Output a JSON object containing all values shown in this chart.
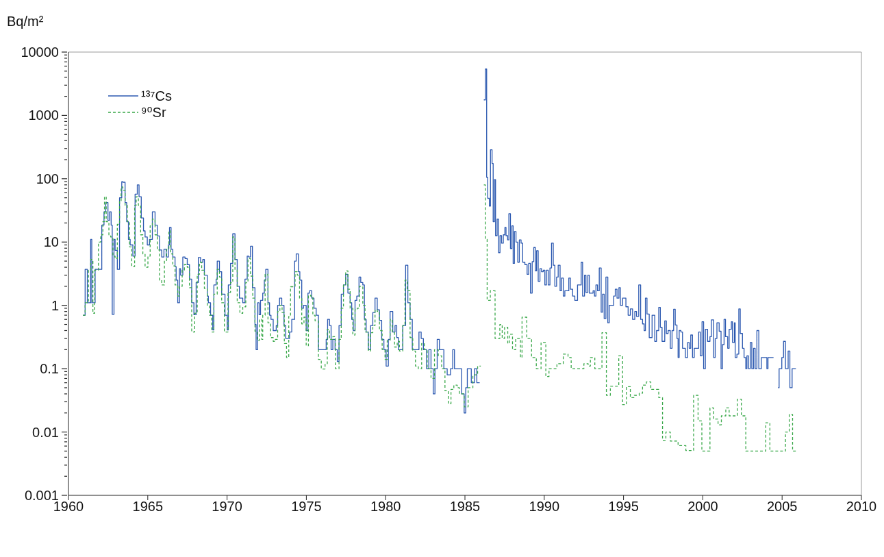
{
  "chart_data": {
    "type": "step",
    "ylabel": "Bq/m²",
    "log": "y",
    "legend": "top left",
    "marker": "none",
    "xlim": [
      1960,
      2010
    ],
    "xticks": [
      1960,
      1965,
      1970,
      1975,
      1980,
      1985,
      1990,
      1995,
      2000,
      2005,
      2010
    ],
    "ylim": [
      0.001,
      10000
    ],
    "yticks": [
      0.001,
      {
        "value": 0.002,
        "label": null
      },
      {
        "value": 0.003,
        "label": null
      },
      {
        "value": 0.004,
        "label": null
      },
      {
        "value": 0.005,
        "label": null
      },
      {
        "value": 0.006,
        "label": null
      },
      {
        "value": 0.007,
        "label": null
      },
      {
        "value": 0.008,
        "label": null
      },
      {
        "value": 0.009,
        "label": null
      },
      0.01,
      {
        "value": 0.02,
        "label": null
      },
      {
        "value": 0.03,
        "label": null
      },
      {
        "value": 0.04,
        "label": null
      },
      {
        "value": 0.05,
        "label": null
      },
      {
        "value": 0.06,
        "label": null
      },
      {
        "value": 0.07,
        "label": null
      },
      {
        "value": 0.08,
        "label": null
      },
      {
        "value": 0.09,
        "label": null
      },
      0.1,
      {
        "value": 0.2,
        "label": null
      },
      {
        "value": 0.3,
        "label": null
      },
      {
        "value": 0.4,
        "label": null
      },
      {
        "value": 0.5,
        "label": null
      },
      {
        "value": 0.6,
        "label": null
      },
      {
        "value": 0.7,
        "label": null
      },
      {
        "value": 0.8,
        "label": null
      },
      {
        "value": 0.9,
        "label": null
      },
      1,
      {
        "value": 2,
        "label": null
      },
      {
        "value": 3,
        "label": null
      },
      {
        "value": 4,
        "label": null
      },
      {
        "value": 5,
        "label": null
      },
      {
        "value": 6,
        "label": null
      },
      {
        "value": 7,
        "label": null
      },
      {
        "value": 8,
        "label": null
      },
      {
        "value": 9,
        "label": null
      },
      10,
      {
        "value": 20,
        "label": null
      },
      {
        "value": 30,
        "label": null
      },
      {
        "value": 40,
        "label": null
      },
      {
        "value": 50,
        "label": null
      },
      {
        "value": 60,
        "label": null
      },
      {
        "value": 70,
        "label": null
      },
      {
        "value": 80,
        "label": null
      },
      {
        "value": 90,
        "label": null
      },
      100,
      {
        "value": 200,
        "label": null
      },
      {
        "value": 300,
        "label": null
      },
      {
        "value": 400,
        "label": null
      },
      {
        "value": 500,
        "label": null
      },
      {
        "value": 600,
        "label": null
      },
      {
        "value": 700,
        "label": null
      },
      {
        "value": 800,
        "label": null
      },
      {
        "value": 900,
        "label": null
      },
      1000,
      {
        "value": 2000,
        "label": null
      },
      {
        "value": 3000,
        "label": null
      },
      {
        "value": 4000,
        "label": null
      },
      {
        "value": 5000,
        "label": null
      },
      {
        "value": 6000,
        "label": null
      },
      {
        "value": 7000,
        "label": null
      },
      {
        "value": 8000,
        "label": null
      },
      {
        "value": 9000,
        "label": null
      },
      10000
    ],
    "series": [
      {
        "name": "¹³⁷Cs",
        "color": "#2b58b0",
        "line_style": "solid",
        "x": [
          1960.91,
          1961.05,
          1961.19,
          1961.4,
          1961.47,
          1961.68,
          1962.1,
          1962.24,
          1962.35,
          1962.49,
          1962.59,
          1962.69,
          1962.76,
          1962.87,
          1962.94,
          1963.08,
          1963.22,
          1963.36,
          1963.43,
          1963.57,
          1963.67,
          1963.78,
          1963.89,
          1964.06,
          1964.2,
          1964.34,
          1964.45,
          1964.59,
          1964.73,
          1964.83,
          1964.97,
          1965.11,
          1965.29,
          1965.46,
          1965.6,
          1965.74,
          1965.88,
          1966.02,
          1966.16,
          1966.3,
          1966.37,
          1966.47,
          1966.58,
          1966.72,
          1966.79,
          1966.89,
          1967.0,
          1967.07,
          1967.21,
          1967.35,
          1967.49,
          1967.63,
          1967.77,
          1967.91,
          1968.05,
          1968.19,
          1968.33,
          1968.47,
          1968.57,
          1968.75,
          1968.82,
          1968.96,
          1969.1,
          1969.17,
          1969.31,
          1969.38,
          1969.52,
          1969.66,
          1969.87,
          1970.01,
          1970.08,
          1970.22,
          1970.36,
          1970.5,
          1970.64,
          1970.78,
          1970.99,
          1971.13,
          1971.27,
          1971.37,
          1971.48,
          1971.6,
          1971.76,
          1971.83,
          1971.93,
          1972.02,
          1972.11,
          1972.25,
          1972.35,
          1972.44,
          1972.58,
          1972.68,
          1972.77,
          1972.91,
          1973.1,
          1973.19,
          1973.31,
          1973.45,
          1973.59,
          1973.7,
          1973.94,
          1974.08,
          1974.26,
          1974.36,
          1974.5,
          1974.59,
          1974.71,
          1974.82,
          1974.99,
          1975.1,
          1975.2,
          1975.34,
          1975.48,
          1975.62,
          1975.76,
          1976.25,
          1976.34,
          1976.46,
          1976.56,
          1976.67,
          1976.81,
          1976.95,
          1977.06,
          1977.2,
          1977.34,
          1977.48,
          1977.62,
          1977.76,
          1977.86,
          1977.96,
          1978.07,
          1978.18,
          1978.32,
          1978.43,
          1978.56,
          1978.66,
          1978.77,
          1978.91,
          1979.05,
          1979.19,
          1979.33,
          1979.47,
          1979.61,
          1979.75,
          1979.89,
          1980.03,
          1980.17,
          1980.28,
          1980.45,
          1980.59,
          1980.7,
          1980.8,
          1981.08,
          1981.26,
          1981.4,
          1981.54,
          1981.68,
          1982.1,
          1982.24,
          1982.38,
          1982.58,
          1982.72,
          1982.86,
          1983.0,
          1983.11,
          1983.25,
          1983.39,
          1983.67,
          1983.88,
          1984.09,
          1984.23,
          1984.34,
          1984.79,
          1984.95,
          1985.05,
          1985.15,
          1985.4,
          1985.6,
          1985.75,
          1985.93,
          1986.05,
          1986.19,
          1986.29,
          1986.37,
          1986.44,
          1986.54,
          1986.61,
          1986.71,
          1986.78,
          1986.86,
          1986.93,
          1987.03,
          1987.12,
          1987.21,
          1987.31,
          1987.42,
          1987.52,
          1987.59,
          1987.69,
          1987.77,
          1987.87,
          1987.96,
          1988.04,
          1988.12,
          1988.22,
          1988.33,
          1988.43,
          1988.54,
          1988.64,
          1988.78,
          1988.92,
          1989.02,
          1989.13,
          1989.24,
          1989.34,
          1989.44,
          1989.52,
          1989.62,
          1989.73,
          1989.83,
          1989.94,
          1990.04,
          1990.14,
          1990.25,
          1990.36,
          1990.46,
          1990.57,
          1990.67,
          1990.78,
          1990.88,
          1991.0,
          1991.09,
          1991.2,
          1991.3,
          1991.55,
          1991.65,
          1991.79,
          1991.93,
          1992.1,
          1992.33,
          1992.42,
          1992.54,
          1992.63,
          1992.75,
          1992.84,
          1993.08,
          1993.17,
          1993.26,
          1993.36,
          1993.47,
          1993.59,
          1993.68,
          1993.78,
          1993.89,
          1994.01,
          1994.1,
          1994.38,
          1994.48,
          1994.59,
          1994.71,
          1994.8,
          1994.94,
          1995.15,
          1995.29,
          1995.43,
          1995.57,
          1995.71,
          1995.82,
          1995.96,
          1996.08,
          1996.2,
          1996.3,
          1996.38,
          1996.48,
          1996.62,
          1996.8,
          1996.97,
          1997.08,
          1997.22,
          1997.32,
          1997.43,
          1997.6,
          1997.7,
          1997.81,
          1997.95,
          1998.06,
          1998.16,
          1998.26,
          1998.37,
          1998.44,
          1998.51,
          1998.62,
          1998.72,
          1998.9,
          1999.04,
          1999.14,
          1999.24,
          1999.35,
          1999.46,
          1999.74,
          1999.84,
          1999.95,
          2000.05,
          2000.16,
          2000.3,
          2000.45,
          2000.54,
          2000.68,
          2000.78,
          2000.89,
          2001.03,
          2001.15,
          2001.24,
          2001.34,
          2001.43,
          2001.57,
          2001.66,
          2001.8,
          2001.87,
          2001.99,
          2002.04,
          2002.15,
          2002.27,
          2002.36,
          2002.5,
          2002.6,
          2002.71,
          2002.78,
          2002.88,
          2002.99,
          2003.09,
          2003.2,
          2003.3,
          2003.41,
          2003.53,
          2003.69,
          2004.04,
          2004.11,
          2004.46,
          2004.6,
          2004.74,
          2004.81,
          2004.98,
          2005.09,
          2005.21,
          2005.38,
          2005.49,
          2005.63,
          2005.87
        ],
        "values": [
          0.7,
          3.7,
          1.1,
          11,
          1.1,
          3.7,
          18.5,
          30,
          42,
          22,
          30,
          18.5,
          0.72,
          11,
          7.4,
          3.7,
          50,
          90,
          88,
          42,
          21,
          11,
          9,
          6,
          57,
          80,
          52,
          24,
          15,
          12,
          9,
          11,
          30,
          18.5,
          12.5,
          7.5,
          5.8,
          7.7,
          5.8,
          9,
          17,
          7.7,
          5.8,
          4.1,
          2.5,
          1.1,
          3.8,
          3.0,
          5.8,
          5.5,
          4.4,
          2.6,
          1.1,
          0.71,
          2.3,
          5.7,
          4.8,
          5.3,
          3.0,
          1.4,
          1.1,
          0.7,
          0.41,
          2.1,
          2.6,
          5.0,
          3.4,
          1.5,
          0.7,
          0.41,
          2.1,
          4.6,
          13.5,
          5.3,
          2.0,
          1.3,
          1.1,
          2.6,
          6,
          5.8,
          8.6,
          1.9,
          0.5,
          0.2,
          1.1,
          0.71,
          1.2,
          1.56,
          2.5,
          3.7,
          1.1,
          0.7,
          0.6,
          0.4,
          0.48,
          1.0,
          1.3,
          1.0,
          0.48,
          0.3,
          0.38,
          0.6,
          5,
          6.5,
          3.4,
          2.5,
          0.9,
          1.0,
          0.4,
          1.56,
          1.7,
          1.3,
          0.9,
          0.7,
          0.2,
          0.29,
          0.6,
          0.48,
          0.2,
          0.29,
          0.2,
          0.13,
          0.48,
          1.5,
          2.1,
          3.1,
          1.56,
          1.1,
          0.6,
          0.4,
          1.2,
          1.4,
          2.8,
          2.3,
          2.1,
          0.6,
          0.38,
          0.2,
          0.48,
          0.77,
          1.3,
          0.85,
          0.58,
          0.29,
          0.2,
          0.11,
          0.29,
          0.8,
          0.38,
          0.48,
          0.31,
          0.2,
          0.48,
          4.3,
          1.1,
          0.6,
          0.2,
          0.38,
          0.3,
          0.2,
          0.1,
          0.2,
          0.1,
          0.04,
          0.1,
          0.29,
          0.2,
          0.1,
          0.08,
          0.1,
          0.2,
          0.1,
          0.04,
          0.02,
          0.05,
          0.1,
          0.06,
          0.1,
          0.06,
          0.06,
          null,
          1760,
          5400,
          105,
          49,
          37,
          287,
          174,
          21,
          97,
          12.6,
          23,
          6.8,
          12.6,
          9.6,
          13,
          17,
          12.6,
          10.8,
          28,
          7.9,
          18,
          4.6,
          14.7,
          10,
          4.8,
          10.8,
          9.6,
          4.8,
          4.4,
          3.1,
          4.6,
          1.56,
          4.9,
          8.2,
          3.5,
          7.3,
          2.4,
          3.8,
          3.4,
          3.6,
          2.1,
          3.6,
          2.1,
          3.9,
          9.6,
          4.3,
          2.0,
          2.8,
          4.3,
          1.7,
          2.7,
          1.4,
          1.7,
          2.7,
          1.8,
          1.4,
          1.2,
          2.1,
          4.8,
          1.4,
          3.0,
          1.6,
          3.0,
          1.56,
          1.7,
          1.4,
          2.1,
          1.7,
          3.9,
          0.78,
          1.5,
          0.62,
          2.8,
          0.53,
          1.0,
          1.4,
          1.8,
          1.3,
          1.9,
          1.0,
          1.3,
          0.95,
          0.7,
          0.88,
          0.6,
          0.8,
          0.67,
          2.1,
          0.6,
          0.51,
          0.4,
          1.3,
          0.73,
          0.31,
          0.7,
          0.27,
          0.4,
          0.93,
          0.45,
          0.27,
          0.57,
          0.36,
          0.4,
          0.21,
          0.4,
          0.87,
          0.49,
          0.3,
          0.15,
          0.4,
          0.38,
          0.21,
          0.15,
          0.26,
          0.21,
          0.34,
          0.15,
          0.21,
          0.38,
          0.16,
          0.55,
          0.1,
          0.42,
          0.27,
          0.32,
          0.59,
          0.15,
          0.3,
          0.53,
          0.39,
          0.1,
          0.24,
          0.6,
          0.32,
          0.21,
          0.42,
          0.55,
          0.26,
          0.53,
          0.15,
          0.17,
          0.88,
          0.36,
          0.21,
          0.15,
          0.1,
          0.16,
          0.1,
          0.26,
          0.1,
          0.21,
          0.1,
          0.4,
          0.1,
          0.15,
          0.1,
          0.15,
          0.15,
          null,
          0.05,
          0.1,
          0.15,
          0.27,
          0.1,
          0.19,
          0.05,
          0.1,
          0.1
        ]
      },
      {
        "name": "⁹⁰Sr",
        "color": "#3aa84a",
        "line_style": "dashed",
        "x": [
          1960.91,
          1961.05,
          1961.26,
          1961.4,
          1961.54,
          1961.65,
          1961.89,
          1962.03,
          1962.17,
          1962.27,
          1962.38,
          1962.55,
          1962.66,
          1962.8,
          1962.94,
          1963.08,
          1963.22,
          1963.32,
          1963.43,
          1963.57,
          1963.71,
          1963.85,
          1963.99,
          1964.17,
          1964.27,
          1964.41,
          1964.55,
          1964.69,
          1964.83,
          1965.01,
          1965.15,
          1965.29,
          1965.46,
          1965.6,
          1965.74,
          1965.88,
          1966.05,
          1966.19,
          1966.33,
          1966.44,
          1966.58,
          1966.72,
          1966.89,
          1967.0,
          1967.17,
          1967.31,
          1967.49,
          1967.63,
          1967.77,
          1967.96,
          1968.12,
          1968.26,
          1968.4,
          1968.57,
          1968.75,
          1968.89,
          1969.03,
          1969.17,
          1969.38,
          1969.52,
          1969.66,
          1969.83,
          1970.06,
          1970.22,
          1970.36,
          1970.5,
          1970.64,
          1970.81,
          1970.99,
          1971.18,
          1971.32,
          1971.48,
          1971.62,
          1971.76,
          1971.9,
          1972.04,
          1972.19,
          1972.25,
          1972.4,
          1972.58,
          1972.74,
          1972.91,
          1973.05,
          1973.19,
          1973.33,
          1973.47,
          1973.61,
          1973.75,
          1973.89,
          1974.0,
          1974.29,
          1974.43,
          1974.57,
          1974.71,
          1974.85,
          1974.99,
          1975.13,
          1975.27,
          1975.41,
          1975.55,
          1975.76,
          1975.94,
          1976.18,
          1976.32,
          1976.46,
          1976.67,
          1976.83,
          1977.06,
          1977.2,
          1977.34,
          1977.48,
          1977.62,
          1977.76,
          1977.93,
          1978.07,
          1978.21,
          1978.35,
          1978.56,
          1978.7,
          1978.91,
          1979.05,
          1979.19,
          1979.33,
          1979.47,
          1979.61,
          1979.78,
          1979.96,
          1980.1,
          1980.28,
          1980.42,
          1980.56,
          1980.73,
          1980.87,
          1981.08,
          1981.22,
          1981.36,
          1981.54,
          1981.71,
          1981.88,
          1982.06,
          1982.27,
          1982.44,
          1982.62,
          1982.86,
          1983.08,
          1983.32,
          1983.53,
          1983.74,
          1983.95,
          1984.12,
          1984.3,
          1984.51,
          1984.65,
          1984.95,
          1985.2,
          1985.5,
          1985.8,
          1986.0,
          1986.1,
          1986.19,
          1986.29,
          1986.4,
          1986.6,
          1986.9,
          1987.2,
          1987.35,
          1987.5,
          1987.7,
          1987.8,
          1988.0,
          1988.2,
          1988.5,
          1988.6,
          1988.9,
          1989.2,
          1989.5,
          1989.8,
          1990.1,
          1990.3,
          1990.8,
          1991.2,
          1991.5,
          1991.7,
          1992.2,
          1992.5,
          1992.77,
          1992.91,
          1993.19,
          1993.64,
          1993.92,
          1994.17,
          1994.7,
          1994.94,
          1995.18,
          1995.43,
          1995.68,
          1995.99,
          1996.2,
          1996.44,
          1996.72,
          1997.22,
          1997.46,
          1997.67,
          1997.95,
          1998.44,
          1998.93,
          1999.42,
          1999.7,
          1999.94,
          2000.45,
          2000.68,
          2000.96,
          2001.17,
          2001.45,
          2001.66,
          2002.18,
          2002.43,
          2002.71,
          2003.97,
          2004.23,
          2005.21,
          2005.45,
          2005.66,
          2005.87
        ],
        "values": [
          0.7,
          1.1,
          3.6,
          5.3,
          0.75,
          3.6,
          10,
          13,
          21,
          52,
          21,
          13,
          12,
          6,
          5.5,
          19,
          45,
          74,
          66,
          38,
          21,
          8.4,
          4.1,
          38,
          52,
          38,
          13,
          6.5,
          4.0,
          6,
          18,
          23,
          13,
          7.5,
          2.5,
          2.1,
          5.1,
          7.7,
          15,
          6.5,
          4.2,
          2.1,
          1.4,
          2.0,
          3.6,
          4.4,
          4,
          1.9,
          0.38,
          0.75,
          3.1,
          4.8,
          3.6,
          1.85,
          1.0,
          0.7,
          0.38,
          1.5,
          3.7,
          2.8,
          1.1,
          0.38,
          1.6,
          2.3,
          12,
          3.7,
          1.1,
          0.75,
          0.95,
          2.3,
          5.5,
          2.9,
          1.3,
          0.39,
          0.28,
          0.6,
          0.29,
          0.7,
          3.1,
          0.53,
          0.31,
          0.27,
          0.29,
          0.8,
          1.0,
          0.77,
          0.25,
          0.15,
          0.67,
          1.97,
          3.4,
          3.0,
          1.3,
          0.51,
          0.65,
          0.23,
          1.45,
          1.4,
          0.7,
          0.57,
          0.14,
          0.099,
          0.12,
          0.42,
          0.29,
          0.32,
          0.1,
          0.29,
          0.9,
          2.1,
          3.5,
          1.8,
          0.9,
          0.34,
          0.85,
          0.9,
          2.0,
          1.0,
          0.38,
          0.19,
          0.37,
          0.48,
          0.85,
          0.8,
          0.4,
          0.2,
          0.14,
          0.28,
          0.6,
          0.38,
          0.22,
          0.27,
          0.19,
          0.48,
          2.5,
          1.7,
          0.31,
          0.19,
          0.11,
          0.1,
          0.25,
          0.2,
          0.1,
          0.07,
          0.2,
          0.16,
          0.1,
          0.045,
          0.028,
          0.047,
          0.055,
          0.05,
          0.04,
          0.025,
          0.05,
          0.08,
          0.11,
          0.11,
          null,
          80,
          11,
          1.2,
          1.7,
          0.3,
          0.5,
          0.3,
          0.45,
          0.25,
          0.35,
          0.2,
          0.3,
          0.15,
          0.65,
          0.3,
          0.15,
          0.1,
          0.26,
          0.075,
          0.1,
          0.12,
          0.17,
          0.15,
          0.1,
          0.1,
          0.12,
          0.11,
          0.15,
          0.1,
          0.37,
          0.038,
          0.053,
          0.16,
          0.027,
          0.052,
          0.035,
          0.038,
          0.041,
          0.055,
          0.062,
          0.047,
          0.035,
          0.0074,
          0.01,
          0.0072,
          0.0061,
          0.0051,
          0.038,
          0.015,
          0.005,
          0.024,
          0.016,
          0.013,
          0.018,
          0.024,
          0.018,
          0.033,
          0.018,
          0.005,
          0.014,
          0.005,
          0.01,
          0.019,
          0.005,
          0.005
        ]
      }
    ]
  }
}
